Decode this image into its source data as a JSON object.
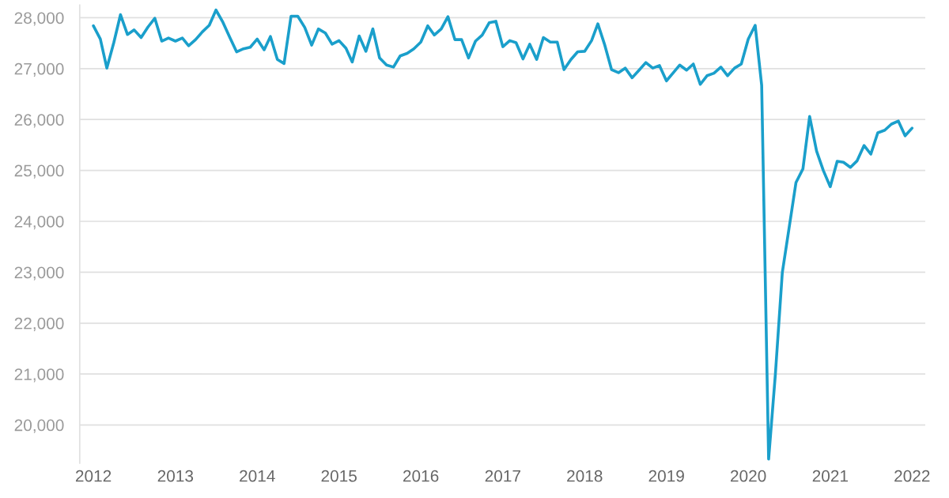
{
  "chart_data": {
    "type": "line",
    "x": [
      "2012-01",
      "2012-02",
      "2012-03",
      "2012-04",
      "2012-05",
      "2012-06",
      "2012-07",
      "2012-08",
      "2012-09",
      "2012-10",
      "2012-11",
      "2012-12",
      "2013-01",
      "2013-02",
      "2013-03",
      "2013-04",
      "2013-05",
      "2013-06",
      "2013-07",
      "2013-08",
      "2013-09",
      "2013-10",
      "2013-11",
      "2013-12",
      "2014-01",
      "2014-02",
      "2014-03",
      "2014-04",
      "2014-05",
      "2014-06",
      "2014-07",
      "2014-08",
      "2014-09",
      "2014-10",
      "2014-11",
      "2014-12",
      "2015-01",
      "2015-02",
      "2015-03",
      "2015-04",
      "2015-05",
      "2015-06",
      "2015-07",
      "2015-08",
      "2015-09",
      "2015-10",
      "2015-11",
      "2015-12",
      "2016-01",
      "2016-02",
      "2016-03",
      "2016-04",
      "2016-05",
      "2016-06",
      "2016-07",
      "2016-08",
      "2016-09",
      "2016-10",
      "2016-11",
      "2016-12",
      "2017-01",
      "2017-02",
      "2017-03",
      "2017-04",
      "2017-05",
      "2017-06",
      "2017-07",
      "2017-08",
      "2017-09",
      "2017-10",
      "2017-11",
      "2017-12",
      "2018-01",
      "2018-02",
      "2018-03",
      "2018-04",
      "2018-05",
      "2018-06",
      "2018-07",
      "2018-08",
      "2018-09",
      "2018-10",
      "2018-11",
      "2018-12",
      "2019-01",
      "2019-02",
      "2019-03",
      "2019-04",
      "2019-05",
      "2019-06",
      "2019-07",
      "2019-08",
      "2019-09",
      "2019-10",
      "2019-11",
      "2019-12",
      "2020-01",
      "2020-02",
      "2020-03",
      "2020-04",
      "2020-05",
      "2020-06",
      "2020-07",
      "2020-08",
      "2020-09",
      "2020-10",
      "2020-11",
      "2020-12",
      "2021-01",
      "2021-02",
      "2021-03",
      "2021-04",
      "2021-05",
      "2021-06",
      "2021-07",
      "2021-08",
      "2021-09",
      "2021-10",
      "2021-11",
      "2021-12",
      "2022-01"
    ],
    "series": [
      {
        "color": "#1a9fcb",
        "values": [
          27840,
          27580,
          27010,
          27510,
          28060,
          27670,
          27760,
          27610,
          27820,
          27990,
          27540,
          27600,
          27540,
          27600,
          27450,
          27570,
          27720,
          27850,
          28150,
          27910,
          27610,
          27330,
          27390,
          27420,
          27580,
          27370,
          27630,
          27180,
          27100,
          28030,
          28030,
          27810,
          27460,
          27780,
          27700,
          27480,
          27550,
          27400,
          27130,
          27640,
          27340,
          27780,
          27210,
          27070,
          27030,
          27250,
          27300,
          27390,
          27520,
          27840,
          27660,
          27780,
          28020,
          27570,
          27570,
          27210,
          27540,
          27660,
          27900,
          27930,
          27430,
          27550,
          27510,
          27190,
          27480,
          27180,
          27610,
          27520,
          27520,
          26980,
          27180,
          27330,
          27340,
          27550,
          27880,
          27460,
          26980,
          26920,
          27010,
          26820,
          26970,
          27120,
          27010,
          27060,
          26760,
          26920,
          27070,
          26970,
          27090,
          26690,
          26860,
          26910,
          27030,
          26860,
          27010,
          27090,
          27580,
          27850,
          26670,
          19330,
          20990,
          22990,
          23860,
          24760,
          25030,
          26060,
          25380,
          25000,
          24680,
          25180,
          25160,
          25060,
          25190,
          25490,
          25320,
          25740,
          25790,
          25910,
          25970,
          25680,
          25830
        ]
      }
    ],
    "ylim": [
      19250,
      28250
    ],
    "yticks": [
      {
        "value": 20000,
        "label": "20,000"
      },
      {
        "value": 21000,
        "label": "21,000"
      },
      {
        "value": 22000,
        "label": "22,000"
      },
      {
        "value": 23000,
        "label": "23,000"
      },
      {
        "value": 24000,
        "label": "24,000"
      },
      {
        "value": 25000,
        "label": "25,000"
      },
      {
        "value": 26000,
        "label": "26,000"
      },
      {
        "value": 27000,
        "label": "27,000"
      },
      {
        "value": 28000,
        "label": "28,000"
      }
    ],
    "xlim": [
      "2011-11-01",
      "2022-03-01"
    ],
    "xticks": [
      {
        "value": "2012-01-01",
        "label": "2012"
      },
      {
        "value": "2013-01-01",
        "label": "2013"
      },
      {
        "value": "2014-01-01",
        "label": "2014"
      },
      {
        "value": "2015-01-01",
        "label": "2015"
      },
      {
        "value": "2016-01-01",
        "label": "2016"
      },
      {
        "value": "2017-01-01",
        "label": "2017"
      },
      {
        "value": "2018-01-01",
        "label": "2018"
      },
      {
        "value": "2019-01-01",
        "label": "2019"
      },
      {
        "value": "2020-01-01",
        "label": "2020"
      },
      {
        "value": "2021-01-01",
        "label": "2021"
      },
      {
        "value": "2022-01-01",
        "label": "2022"
      }
    ],
    "grid": "y"
  }
}
